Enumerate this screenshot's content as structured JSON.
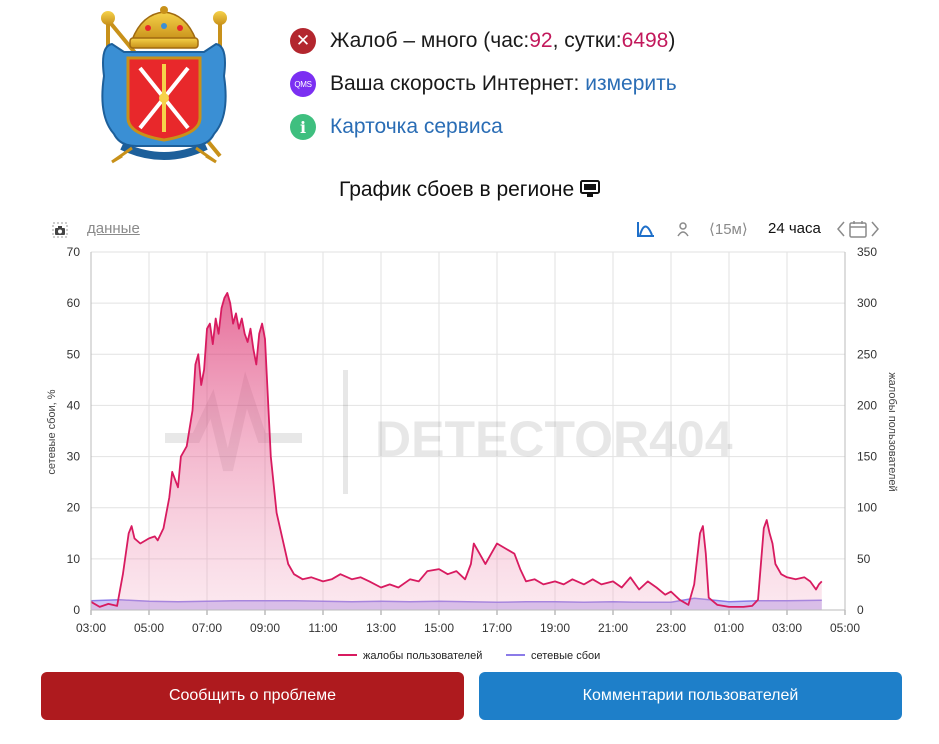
{
  "status": {
    "complaints_prefix": "Жалоб – много (час: ",
    "complaints_hour": "92",
    "complaints_mid": ", сутки: ",
    "complaints_day": "6498",
    "complaints_suffix": ")",
    "speed_label": "Ваша скорость Интернет: ",
    "speed_link": "измерить",
    "qms_icon_text": "QMS",
    "service_card": "Карточка сервиса"
  },
  "chart_title": "График сбоев в регионе",
  "toolbar": {
    "data_link": "данные",
    "interval": "⟨15м⟩",
    "range": "24 часа"
  },
  "watermark": "DETECTOR404",
  "colors": {
    "complaints": "#d81b60",
    "outages": "#8b7be8",
    "report_button": "#ae1a1e",
    "comments_button": "#1e7fc9"
  },
  "chart_data": {
    "type": "area",
    "title": "График сбоев в регионе",
    "ylabel_left": "сетевые сбои, %",
    "ylabel_right": "жалобы пользователей",
    "ylim_left": [
      0,
      70
    ],
    "ylim_right": [
      0,
      350
    ],
    "yticks_left": [
      "0",
      "10",
      "20",
      "30",
      "40",
      "50",
      "60",
      "70"
    ],
    "yticks_right": [
      "0",
      "50",
      "100",
      "150",
      "200",
      "250",
      "300",
      "350"
    ],
    "x_range_hours": [
      3,
      29
    ],
    "xticks": [
      "03:00",
      "05:00",
      "07:00",
      "09:00",
      "11:00",
      "13:00",
      "15:00",
      "17:00",
      "19:00",
      "21:00",
      "23:00",
      "01:00",
      "03:00",
      "05:00"
    ],
    "legend_position": "bottom",
    "grid": true,
    "series": [
      {
        "name": "жалобы пользователей",
        "axis": "right",
        "points": [
          [
            3.0,
            8
          ],
          [
            3.3,
            3
          ],
          [
            3.6,
            6
          ],
          [
            3.9,
            4
          ],
          [
            4.1,
            35
          ],
          [
            4.3,
            75
          ],
          [
            4.4,
            82
          ],
          [
            4.5,
            70
          ],
          [
            4.7,
            65
          ],
          [
            5.0,
            70
          ],
          [
            5.2,
            72
          ],
          [
            5.3,
            68
          ],
          [
            5.5,
            80
          ],
          [
            5.7,
            110
          ],
          [
            5.8,
            135
          ],
          [
            6.0,
            120
          ],
          [
            6.1,
            150
          ],
          [
            6.3,
            160
          ],
          [
            6.5,
            195
          ],
          [
            6.6,
            240
          ],
          [
            6.7,
            250
          ],
          [
            6.8,
            220
          ],
          [
            6.9,
            235
          ],
          [
            7.0,
            275
          ],
          [
            7.1,
            280
          ],
          [
            7.2,
            260
          ],
          [
            7.3,
            285
          ],
          [
            7.4,
            270
          ],
          [
            7.5,
            295
          ],
          [
            7.6,
            305
          ],
          [
            7.7,
            310
          ],
          [
            7.8,
            300
          ],
          [
            7.9,
            280
          ],
          [
            8.0,
            290
          ],
          [
            8.1,
            275
          ],
          [
            8.2,
            285
          ],
          [
            8.3,
            270
          ],
          [
            8.4,
            262
          ],
          [
            8.5,
            275
          ],
          [
            8.6,
            255
          ],
          [
            8.7,
            240
          ],
          [
            8.8,
            270
          ],
          [
            8.9,
            280
          ],
          [
            9.0,
            265
          ],
          [
            9.2,
            150
          ],
          [
            9.4,
            95
          ],
          [
            9.6,
            70
          ],
          [
            9.8,
            45
          ],
          [
            10.0,
            35
          ],
          [
            10.3,
            30
          ],
          [
            10.6,
            32
          ],
          [
            11.0,
            28
          ],
          [
            11.3,
            30
          ],
          [
            11.6,
            35
          ],
          [
            12.0,
            30
          ],
          [
            12.3,
            32
          ],
          [
            12.6,
            28
          ],
          [
            13.0,
            22
          ],
          [
            13.3,
            25
          ],
          [
            13.6,
            22
          ],
          [
            14.0,
            30
          ],
          [
            14.3,
            28
          ],
          [
            14.6,
            38
          ],
          [
            15.0,
            40
          ],
          [
            15.3,
            35
          ],
          [
            15.6,
            38
          ],
          [
            15.9,
            30
          ],
          [
            16.1,
            45
          ],
          [
            16.2,
            65
          ],
          [
            16.4,
            55
          ],
          [
            16.6,
            45
          ],
          [
            16.8,
            55
          ],
          [
            17.0,
            65
          ],
          [
            17.3,
            60
          ],
          [
            17.6,
            55
          ],
          [
            17.8,
            40
          ],
          [
            18.0,
            28
          ],
          [
            18.3,
            30
          ],
          [
            18.6,
            25
          ],
          [
            19.0,
            28
          ],
          [
            19.3,
            25
          ],
          [
            19.6,
            30
          ],
          [
            20.0,
            25
          ],
          [
            20.3,
            30
          ],
          [
            20.6,
            25
          ],
          [
            21.0,
            28
          ],
          [
            21.3,
            22
          ],
          [
            21.6,
            32
          ],
          [
            21.9,
            20
          ],
          [
            22.2,
            28
          ],
          [
            22.5,
            22
          ],
          [
            22.8,
            15
          ],
          [
            23.0,
            18
          ],
          [
            23.3,
            10
          ],
          [
            23.6,
            5
          ],
          [
            23.8,
            25
          ],
          [
            24.0,
            75
          ],
          [
            24.1,
            82
          ],
          [
            24.2,
            55
          ],
          [
            24.3,
            12
          ],
          [
            24.6,
            5
          ],
          [
            25.0,
            3
          ],
          [
            25.5,
            3
          ],
          [
            25.8,
            4
          ],
          [
            26.0,
            10
          ],
          [
            26.1,
            45
          ],
          [
            26.2,
            80
          ],
          [
            26.3,
            88
          ],
          [
            26.4,
            75
          ],
          [
            26.5,
            65
          ],
          [
            26.6,
            45
          ],
          [
            26.8,
            35
          ],
          [
            27.0,
            32
          ],
          [
            27.3,
            30
          ],
          [
            27.6,
            32
          ],
          [
            27.8,
            28
          ],
          [
            28.0,
            20
          ],
          [
            28.1,
            25
          ],
          [
            28.2,
            28
          ]
        ]
      },
      {
        "name": "сетевые сбои",
        "axis": "left",
        "points": [
          [
            3.0,
            1.8
          ],
          [
            4.0,
            2.0
          ],
          [
            5.0,
            1.7
          ],
          [
            6.0,
            1.6
          ],
          [
            7.0,
            1.7
          ],
          [
            8.0,
            1.8
          ],
          [
            9.0,
            1.8
          ],
          [
            10.0,
            1.8
          ],
          [
            11.0,
            1.7
          ],
          [
            12.0,
            1.6
          ],
          [
            13.0,
            1.7
          ],
          [
            14.0,
            1.6
          ],
          [
            15.0,
            1.7
          ],
          [
            16.0,
            1.6
          ],
          [
            17.0,
            1.5
          ],
          [
            18.0,
            1.6
          ],
          [
            19.0,
            1.6
          ],
          [
            20.0,
            1.5
          ],
          [
            21.0,
            1.6
          ],
          [
            22.0,
            1.5
          ],
          [
            23.0,
            1.5
          ],
          [
            23.8,
            2.3
          ],
          [
            24.5,
            1.9
          ],
          [
            25.0,
            1.6
          ],
          [
            26.0,
            1.8
          ],
          [
            27.0,
            1.8
          ],
          [
            28.2,
            1.9
          ]
        ]
      }
    ]
  },
  "buttons": {
    "report": "Сообщить о проблеме",
    "comments": "Комментарии пользователей"
  }
}
